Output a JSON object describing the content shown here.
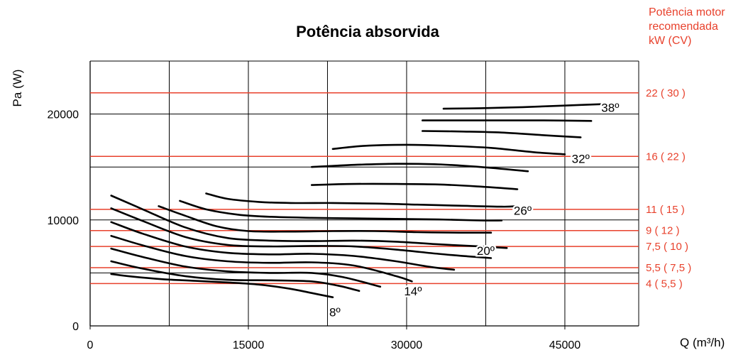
{
  "colors": {
    "accent": "#e8412c",
    "grid": "#000000",
    "curve": "#000000"
  },
  "side_title_lines": [
    "Potência motor",
    "recomendada",
    "kW (CV)"
  ],
  "chart_data": {
    "type": "line",
    "title": "Potência absorvida",
    "xlabel": "Q (m³/h)",
    "ylabel": "Pa (W)",
    "xlim": [
      0,
      52000
    ],
    "ylim": [
      0,
      25000
    ],
    "x_ticks": [
      0,
      15000,
      30000,
      45000
    ],
    "y_ticks": [
      0,
      10000,
      20000
    ],
    "grid": true,
    "motor_power_lines": [
      {
        "value": 22000,
        "label": "22 ( 30 )"
      },
      {
        "value": 16000,
        "label": "16 ( 22 )"
      },
      {
        "value": 11000,
        "label": "11 ( 15 )"
      },
      {
        "value": 9000,
        "label": "9 ( 12 )"
      },
      {
        "value": 7500,
        "label": "7,5 ( 10 )"
      },
      {
        "value": 5500,
        "label": "5,5 ( 7,5 )"
      },
      {
        "value": 4000,
        "label": "4 ( 5,5 )"
      }
    ],
    "angle_labels": [
      {
        "label": "38º",
        "x": 49300,
        "y": 20600
      },
      {
        "label": "32º",
        "x": 46500,
        "y": 15800
      },
      {
        "label": "26º",
        "x": 41000,
        "y": 10900
      },
      {
        "label": "20º",
        "x": 37500,
        "y": 7100
      },
      {
        "label": "14º",
        "x": 30600,
        "y": 3300
      },
      {
        "label": "8º",
        "x": 23200,
        "y": 1300
      }
    ],
    "series": [
      {
        "x": [
          2000,
          4000,
          7000,
          10000,
          13000,
          16000,
          19000,
          21000,
          23000
        ],
        "y": [
          4900,
          4650,
          4400,
          4250,
          4100,
          3900,
          3500,
          3100,
          2700
        ]
      },
      {
        "x": [
          2000,
          5000,
          9000,
          13000,
          17000,
          21000,
          23500,
          25500
        ],
        "y": [
          6100,
          5400,
          4700,
          4350,
          4300,
          4200,
          3800,
          3300
        ]
      },
      {
        "x": [
          2000,
          5000,
          9000,
          13000,
          17000,
          21000,
          24000,
          27500
        ],
        "y": [
          7300,
          6500,
          5600,
          5150,
          5000,
          5000,
          4600,
          3700
        ]
      },
      {
        "x": [
          2000,
          5000,
          9000,
          13000,
          17000,
          21000,
          25000,
          29000,
          30500
        ],
        "y": [
          8500,
          7600,
          6600,
          6100,
          5950,
          6000,
          5700,
          4700,
          4200
        ]
      },
      {
        "x": [
          2000,
          5000,
          9000,
          13000,
          17000,
          21000,
          25000,
          29000,
          32000,
          34500
        ],
        "y": [
          9800,
          8700,
          7500,
          6900,
          6750,
          6800,
          6600,
          6100,
          5600,
          5300
        ]
      },
      {
        "x": [
          2000,
          5000,
          9000,
          13000,
          17000,
          21000,
          25000,
          29000,
          33000,
          36000,
          38000
        ],
        "y": [
          11100,
          9900,
          8400,
          7650,
          7500,
          7550,
          7500,
          7200,
          6800,
          6550,
          6400
        ]
      },
      {
        "x": [
          2000,
          5000,
          9000,
          13000,
          17000,
          21000,
          25000,
          29000,
          33000,
          37000,
          39500
        ],
        "y": [
          12300,
          11000,
          9300,
          8300,
          8050,
          8000,
          8050,
          7950,
          7700,
          7500,
          7350
        ]
      },
      {
        "x": [
          6500,
          9000,
          12000,
          15000,
          19000,
          23000,
          27000,
          31000,
          35000,
          38000
        ],
        "y": [
          11300,
          10400,
          9400,
          8950,
          8900,
          8950,
          8950,
          8850,
          8800,
          8800
        ]
      },
      {
        "x": [
          8500,
          11000,
          14000,
          17000,
          21000,
          25000,
          29000,
          33000,
          37000,
          39000
        ],
        "y": [
          11800,
          11000,
          10500,
          10300,
          10200,
          10150,
          10100,
          10050,
          9950,
          9950
        ]
      },
      {
        "x": [
          11000,
          13000,
          16000,
          19000,
          23000,
          27000,
          31000,
          35000,
          39000,
          40500
        ],
        "y": [
          12500,
          12000,
          11700,
          11600,
          11600,
          11550,
          11450,
          11350,
          11250,
          11300
        ]
      },
      {
        "x": [
          21000,
          25000,
          29000,
          33000,
          37000,
          40500
        ],
        "y": [
          13300,
          13400,
          13400,
          13350,
          13150,
          12900
        ]
      },
      {
        "x": [
          21000,
          25000,
          29000,
          33000,
          37000,
          41500
        ],
        "y": [
          15000,
          15200,
          15300,
          15250,
          15000,
          14600
        ]
      },
      {
        "x": [
          23000,
          26000,
          30000,
          34000,
          38000,
          42000,
          45000
        ],
        "y": [
          16700,
          17000,
          17100,
          17000,
          16800,
          16400,
          16200
        ]
      },
      {
        "x": [
          31500,
          35000,
          39000,
          43000,
          46500
        ],
        "y": [
          18400,
          18350,
          18250,
          18000,
          17800
        ]
      },
      {
        "x": [
          31500,
          35000,
          39000,
          43000,
          47500
        ],
        "y": [
          19400,
          19400,
          19400,
          19400,
          19350
        ]
      },
      {
        "x": [
          33500,
          37000,
          41000,
          45000,
          49000
        ],
        "y": [
          20500,
          20550,
          20650,
          20800,
          20950
        ]
      }
    ]
  }
}
